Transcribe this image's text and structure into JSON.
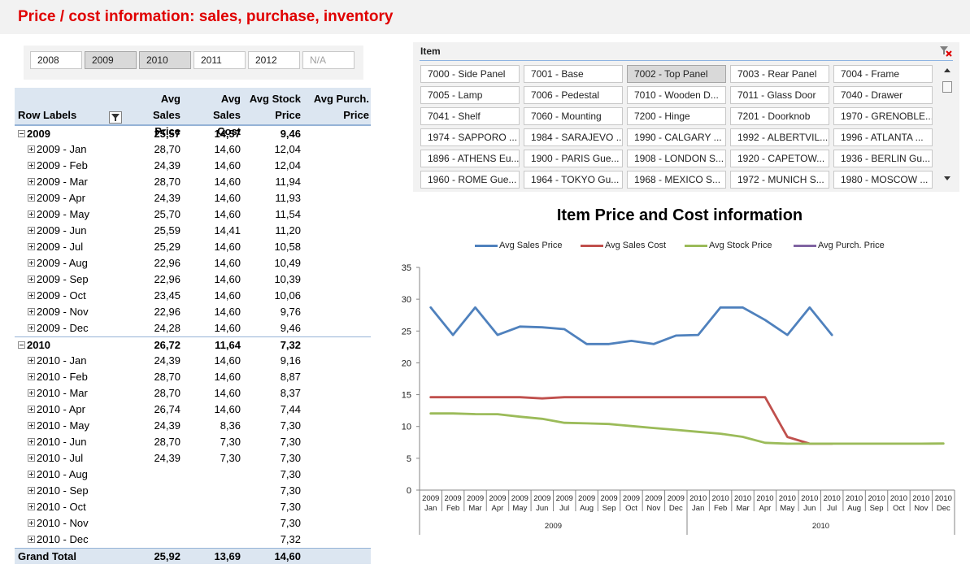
{
  "header": {
    "title": "Price / cost information: sales, purchase, inventory"
  },
  "year_slicer": {
    "items": [
      {
        "label": "2008",
        "selected": false,
        "dim": false
      },
      {
        "label": "2009",
        "selected": true,
        "dim": false
      },
      {
        "label": "2010",
        "selected": true,
        "dim": false
      },
      {
        "label": "2011",
        "selected": false,
        "dim": false
      },
      {
        "label": "2012",
        "selected": false,
        "dim": false
      },
      {
        "label": "N/A",
        "selected": false,
        "dim": true
      }
    ]
  },
  "pivot": {
    "row_labels_header": "Row Labels",
    "columns": [
      {
        "line1": "Avg Sales",
        "line2": "Price"
      },
      {
        "line1": "Avg Sales",
        "line2": "Cost"
      },
      {
        "line1": "Avg Stock",
        "line2": "Price"
      },
      {
        "line1": "Avg Purch.",
        "line2": "Price"
      }
    ],
    "rows": [
      {
        "type": "year",
        "label": "2009",
        "v": [
          "25,57",
          "14,57",
          "9,46",
          ""
        ]
      },
      {
        "type": "month",
        "label": "2009 - Jan",
        "v": [
          "28,70",
          "14,60",
          "12,04",
          ""
        ]
      },
      {
        "type": "month",
        "label": "2009 - Feb",
        "v": [
          "24,39",
          "14,60",
          "12,04",
          ""
        ]
      },
      {
        "type": "month",
        "label": "2009 - Mar",
        "v": [
          "28,70",
          "14,60",
          "11,94",
          ""
        ]
      },
      {
        "type": "month",
        "label": "2009 - Apr",
        "v": [
          "24,39",
          "14,60",
          "11,93",
          ""
        ]
      },
      {
        "type": "month",
        "label": "2009 - May",
        "v": [
          "25,70",
          "14,60",
          "11,54",
          ""
        ]
      },
      {
        "type": "month",
        "label": "2009 - Jun",
        "v": [
          "25,59",
          "14,41",
          "11,20",
          ""
        ]
      },
      {
        "type": "month",
        "label": "2009 - Jul",
        "v": [
          "25,29",
          "14,60",
          "10,58",
          ""
        ]
      },
      {
        "type": "month",
        "label": "2009 - Aug",
        "v": [
          "22,96",
          "14,60",
          "10,49",
          ""
        ]
      },
      {
        "type": "month",
        "label": "2009 - Sep",
        "v": [
          "22,96",
          "14,60",
          "10,39",
          ""
        ]
      },
      {
        "type": "month",
        "label": "2009 - Oct",
        "v": [
          "23,45",
          "14,60",
          "10,06",
          ""
        ]
      },
      {
        "type": "month",
        "label": "2009 - Nov",
        "v": [
          "22,96",
          "14,60",
          "9,76",
          ""
        ]
      },
      {
        "type": "month",
        "label": "2009 - Dec",
        "v": [
          "24,28",
          "14,60",
          "9,46",
          ""
        ]
      },
      {
        "type": "year",
        "label": "2010",
        "v": [
          "26,72",
          "11,64",
          "7,32",
          ""
        ]
      },
      {
        "type": "month",
        "label": "2010 - Jan",
        "v": [
          "24,39",
          "14,60",
          "9,16",
          ""
        ]
      },
      {
        "type": "month",
        "label": "2010 - Feb",
        "v": [
          "28,70",
          "14,60",
          "8,87",
          ""
        ]
      },
      {
        "type": "month",
        "label": "2010 - Mar",
        "v": [
          "28,70",
          "14,60",
          "8,37",
          ""
        ]
      },
      {
        "type": "month",
        "label": "2010 - Apr",
        "v": [
          "26,74",
          "14,60",
          "7,44",
          ""
        ]
      },
      {
        "type": "month",
        "label": "2010 - May",
        "v": [
          "24,39",
          "8,36",
          "7,30",
          ""
        ]
      },
      {
        "type": "month",
        "label": "2010 - Jun",
        "v": [
          "28,70",
          "7,30",
          "7,30",
          ""
        ]
      },
      {
        "type": "month",
        "label": "2010 - Jul",
        "v": [
          "24,39",
          "7,30",
          "7,30",
          ""
        ]
      },
      {
        "type": "month",
        "label": "2010 - Aug",
        "v": [
          "",
          "",
          "7,30",
          ""
        ]
      },
      {
        "type": "month",
        "label": "2010 - Sep",
        "v": [
          "",
          "",
          "7,30",
          ""
        ]
      },
      {
        "type": "month",
        "label": "2010 - Oct",
        "v": [
          "",
          "",
          "7,30",
          ""
        ]
      },
      {
        "type": "month",
        "label": "2010 - Nov",
        "v": [
          "",
          "",
          "7,30",
          ""
        ]
      },
      {
        "type": "month",
        "label": "2010 - Dec",
        "v": [
          "",
          "",
          "7,32",
          ""
        ]
      },
      {
        "type": "grand",
        "label": "Grand Total",
        "v": [
          "25,92",
          "13,69",
          "14,60",
          ""
        ]
      }
    ]
  },
  "item_slicer": {
    "title": "Item",
    "items": [
      {
        "label": "7000 - Side Panel",
        "selected": false
      },
      {
        "label": "7001 - Base",
        "selected": false
      },
      {
        "label": "7002 - Top Panel",
        "selected": true
      },
      {
        "label": "7003 - Rear Panel",
        "selected": false
      },
      {
        "label": "7004 - Frame",
        "selected": false
      },
      {
        "label": "7005 - Lamp",
        "selected": false
      },
      {
        "label": "7006 - Pedestal",
        "selected": false
      },
      {
        "label": "7010 - Wooden D...",
        "selected": false
      },
      {
        "label": "7011 - Glass Door",
        "selected": false
      },
      {
        "label": "7040 - Drawer",
        "selected": false
      },
      {
        "label": "7041 - Shelf",
        "selected": false
      },
      {
        "label": "7060 - Mounting",
        "selected": false
      },
      {
        "label": "7200 - Hinge",
        "selected": false
      },
      {
        "label": "7201 - Doorknob",
        "selected": false
      },
      {
        "label": "1970 - GRENOBLE...",
        "selected": false
      },
      {
        "label": "1974 - SAPPORO ...",
        "selected": false
      },
      {
        "label": "1984 - SARAJEVO ...",
        "selected": false
      },
      {
        "label": "1990 - CALGARY ...",
        "selected": false
      },
      {
        "label": "1992 - ALBERTVIL...",
        "selected": false
      },
      {
        "label": "1996 - ATLANTA ...",
        "selected": false
      },
      {
        "label": "1896 - ATHENS Eu...",
        "selected": false
      },
      {
        "label": "1900 - PARIS Gue...",
        "selected": false
      },
      {
        "label": "1908 - LONDON S...",
        "selected": false
      },
      {
        "label": "1920 - CAPETOW...",
        "selected": false
      },
      {
        "label": "1936 - BERLIN Gu...",
        "selected": false
      },
      {
        "label": "1960 - ROME Gue...",
        "selected": false
      },
      {
        "label": "1964 - TOKYO Gu...",
        "selected": false
      },
      {
        "label": "1968 - MEXICO S...",
        "selected": false
      },
      {
        "label": "1972 - MUNICH S...",
        "selected": false
      },
      {
        "label": "1980 - MOSCOW ...",
        "selected": false
      }
    ]
  },
  "chart_data": {
    "type": "line",
    "title": "Item Price and Cost information",
    "xlabel": "",
    "ylabel": "",
    "ylim": [
      0,
      35
    ],
    "yticks": [
      0,
      5,
      10,
      15,
      20,
      25,
      30,
      35
    ],
    "grid": false,
    "legend": "top",
    "categories": [
      "2009 Jan",
      "2009 Feb",
      "2009 Mar",
      "2009 Apr",
      "2009 May",
      "2009 Jun",
      "2009 Jul",
      "2009 Aug",
      "2009 Sep",
      "2009 Oct",
      "2009 Nov",
      "2009 Dec",
      "2010 Jan",
      "2010 Feb",
      "2010 Mar",
      "2010 Apr",
      "2010 May",
      "2010 Jun",
      "2010 Jul",
      "2010 Aug",
      "2010 Sep",
      "2010 Oct",
      "2010 Nov",
      "2010 Dec"
    ],
    "tick_year_labels": [
      "2009",
      "2009",
      "2009",
      "2009",
      "2009",
      "2009",
      "2009",
      "2009",
      "2009",
      "2009",
      "2009",
      "2009",
      "2010",
      "2010",
      "2010",
      "2010",
      "2010",
      "2010",
      "2010",
      "2010",
      "2010",
      "2010",
      "2010",
      "2010"
    ],
    "tick_month_labels": [
      "Jan",
      "Feb",
      "Mar",
      "Apr",
      "May",
      "Jun",
      "Jul",
      "Aug",
      "Sep",
      "Oct",
      "Nov",
      "Dec",
      "Jan",
      "Feb",
      "Mar",
      "Apr",
      "May",
      "Jun",
      "Jul",
      "Aug",
      "Sep",
      "Oct",
      "Nov",
      "Dec"
    ],
    "year_groups": [
      "2009",
      "2010"
    ],
    "series": [
      {
        "name": "Avg Sales Price",
        "color": "#4f81bd",
        "values": [
          28.7,
          24.39,
          28.7,
          24.39,
          25.7,
          25.59,
          25.29,
          22.96,
          22.96,
          23.45,
          22.96,
          24.28,
          24.39,
          28.7,
          28.7,
          26.74,
          24.39,
          28.7,
          24.39,
          null,
          null,
          null,
          null,
          null
        ]
      },
      {
        "name": "Avg Sales Cost",
        "color": "#c0504d",
        "values": [
          14.6,
          14.6,
          14.6,
          14.6,
          14.6,
          14.41,
          14.6,
          14.6,
          14.6,
          14.6,
          14.6,
          14.6,
          14.6,
          14.6,
          14.6,
          14.6,
          8.36,
          7.3,
          7.3,
          null,
          null,
          null,
          null,
          null
        ]
      },
      {
        "name": "Avg Stock Price",
        "color": "#9bbb59",
        "values": [
          12.04,
          12.04,
          11.94,
          11.93,
          11.54,
          11.2,
          10.58,
          10.49,
          10.39,
          10.06,
          9.76,
          9.46,
          9.16,
          8.87,
          8.37,
          7.44,
          7.3,
          7.3,
          7.3,
          7.3,
          7.3,
          7.3,
          7.3,
          7.32
        ]
      },
      {
        "name": "Avg Purch. Price",
        "color": "#8064a2",
        "values": [
          null,
          null,
          null,
          null,
          null,
          null,
          null,
          null,
          null,
          null,
          null,
          null,
          null,
          null,
          null,
          null,
          null,
          null,
          null,
          null,
          null,
          null,
          null,
          null
        ]
      }
    ]
  }
}
